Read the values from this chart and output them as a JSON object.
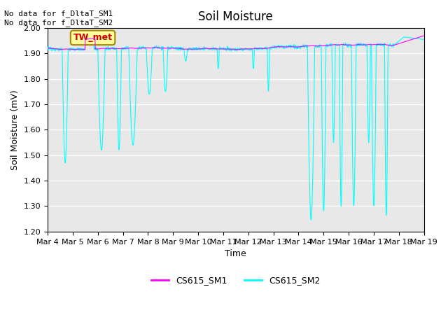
{
  "title": "Soil Moisture",
  "xlabel": "Time",
  "ylabel": "Soil Moisture (mV)",
  "ylim": [
    1.2,
    2.0
  ],
  "yticks": [
    1.2,
    1.3,
    1.4,
    1.5,
    1.6,
    1.7,
    1.8,
    1.9,
    2.0
  ],
  "color_sm1": "#FF00FF",
  "color_sm2": "#00FFFF",
  "legend_label_sm1": "CS615_SM1",
  "legend_label_sm2": "CS615_SM2",
  "annotation_text": "No data for f_DltaT_SM1\nNo data for f_DltaT_SM2",
  "box_label": "TW_met",
  "box_facecolor": "#FFFFA0",
  "box_edgecolor": "#AA8800",
  "box_textcolor": "#CC0000",
  "bg_color": "#E8E8E8",
  "grid_color": "#FFFFFF",
  "n_points": 1500,
  "start_day": 4,
  "end_day": 19,
  "xtick_labels": [
    "Mar 4",
    "Mar 5",
    "Mar 6",
    "Mar 7",
    "Mar 8",
    "Mar 9",
    "Mar 10",
    "Mar 11",
    "Mar 12",
    "Mar 13",
    "Mar 14",
    "Mar 15",
    "Mar 16",
    "Mar 17",
    "Mar 18",
    "Mar 19"
  ],
  "xtick_positions": [
    0,
    1,
    2,
    3,
    4,
    5,
    6,
    7,
    8,
    9,
    10,
    11,
    12,
    13,
    14,
    15
  ]
}
